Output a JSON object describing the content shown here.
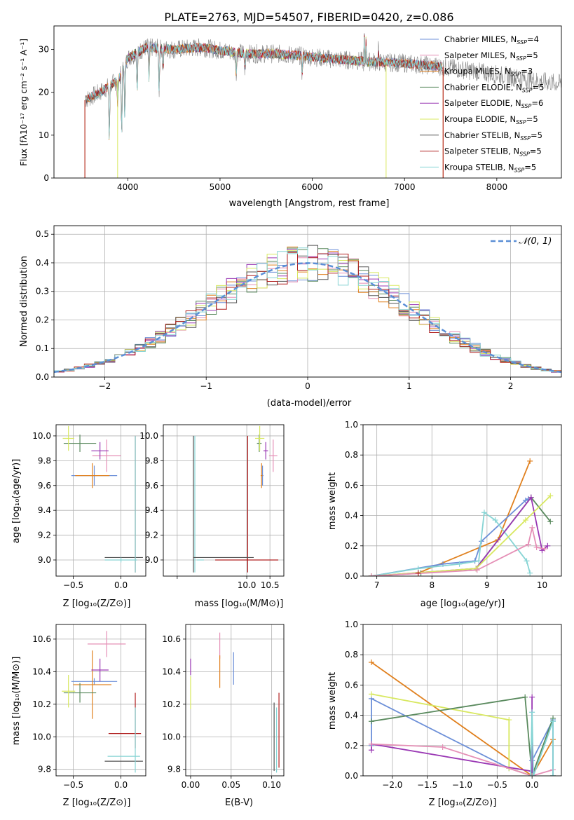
{
  "title": "PLATE=2763, MJD=54507, FIBERID=0420, z=0.086",
  "colors": {
    "c1": "#6c8fd8",
    "c2": "#e58fb6",
    "c3": "#e0801e",
    "c4": "#5a8a5e",
    "c5": "#9a38b4",
    "c6": "#d8e860",
    "c7": "#555555",
    "c8": "#b02020",
    "c9": "#86d4d4",
    "data": "#888888",
    "gauss": "#5b8fd6",
    "grid": "#b0b0b0"
  },
  "chart_data": [
    {
      "id": "spectrum",
      "type": "line",
      "xlabel": "wavelength [Angstrom, rest frame]",
      "ylabel": "Flux [fλ10⁻¹⁷ erg cm⁻² s⁻¹ A⁻¹]",
      "xlim": [
        3200,
        8700
      ],
      "ylim": [
        0,
        35.5
      ],
      "xticks": [
        4000,
        5000,
        6000,
        7000,
        8000
      ],
      "yticks": [
        0,
        10,
        20,
        30
      ],
      "legend": "top-right",
      "series": [
        {
          "name": "Chabrier MILES, N_SSP=4",
          "color": "c1"
        },
        {
          "name": "Salpeter MILES, N_SSP=5",
          "color": "c2"
        },
        {
          "name": "Kroupa MILES, N_SSP=3",
          "color": "c3"
        },
        {
          "name": "Chabrier ELODIE, N_SSP=5",
          "color": "c4"
        },
        {
          "name": "Salpeter ELODIE, N_SSP=6",
          "color": "c5"
        },
        {
          "name": "Kroupa ELODIE, N_SSP=5",
          "color": "c6"
        },
        {
          "name": "Chabrier STELIB, N_SSP=5",
          "color": "c7"
        },
        {
          "name": "Salpeter STELIB, N_SSP=5",
          "color": "c8"
        },
        {
          "name": "Kroupa STELIB, N_SSP=5",
          "color": "c9"
        }
      ],
      "continuum": [
        [
          3520,
          18
        ],
        [
          3700,
          20
        ],
        [
          3900,
          23
        ],
        [
          4000,
          28
        ],
        [
          4200,
          30.5
        ],
        [
          4500,
          30
        ],
        [
          4800,
          30.5
        ],
        [
          5000,
          29.8
        ],
        [
          5300,
          29
        ],
        [
          5600,
          29
        ],
        [
          5900,
          28.5
        ],
        [
          6200,
          27.8
        ],
        [
          6600,
          27.2
        ],
        [
          7000,
          26.8
        ],
        [
          7400,
          26
        ],
        [
          7800,
          24.8
        ],
        [
          8200,
          23.5
        ],
        [
          8500,
          22.5
        ],
        [
          8700,
          22
        ]
      ],
      "absorptions": [
        [
          3800,
          13
        ],
        [
          3890,
          6
        ],
        [
          3934,
          15
        ],
        [
          3968,
          13
        ],
        [
          4102,
          9
        ],
        [
          4230,
          7
        ],
        [
          4340,
          10
        ],
        [
          4383,
          5
        ],
        [
          5175,
          6
        ],
        [
          5270,
          4
        ],
        [
          5890,
          4
        ],
        [
          6563,
          3
        ]
      ],
      "emissions": [
        [
          6563,
          9
        ],
        [
          6583,
          5
        ],
        [
          6717,
          3
        ]
      ],
      "drops": [
        {
          "name": "Kroupa MILES",
          "color": "c3",
          "x": [
            3535,
            7418
          ]
        },
        {
          "name": "Kroupa ELODIE",
          "color": "c6",
          "x": [
            3890,
            6800
          ]
        },
        {
          "name": "Salpeter STELIB",
          "color": "c8",
          "x": [
            3535,
            7418
          ]
        }
      ],
      "model_ranges": [
        [
          3540,
          7410
        ],
        [
          3540,
          7410
        ],
        [
          3540,
          7410
        ],
        [
          3900,
          6790
        ],
        [
          3900,
          6790
        ],
        [
          3900,
          6790
        ],
        [
          3540,
          7410
        ],
        [
          3540,
          7410
        ],
        [
          3540,
          7410
        ]
      ]
    },
    {
      "id": "residuals",
      "type": "histogram",
      "xlabel": "(data-model)/error",
      "ylabel": "Normed distribution",
      "xlim": [
        -2.5,
        2.5
      ],
      "ylim": [
        0,
        0.53
      ],
      "xticks": [
        -2,
        -1,
        0,
        1,
        2
      ],
      "yticks": [
        0.0,
        0.1,
        0.2,
        0.3,
        0.4,
        0.5
      ],
      "legend_label": "𝒩(0, 1)",
      "legend": "top-right",
      "bin_width": 0.1
    },
    {
      "id": "age-vs-Z",
      "type": "scatter",
      "xlabel": "Z [log₁₀(Z/Z⊙)]",
      "ylabel": "age  [log₁₀(age/yr)]",
      "xlim": [
        -0.68,
        0.26
      ],
      "ylim": [
        8.87,
        10.09
      ],
      "xticks": [
        -0.5,
        0.0
      ],
      "yticks": [
        9.0,
        9.2,
        9.4,
        9.6,
        9.8,
        10.0
      ],
      "points": [
        {
          "color": "c1",
          "x": -0.28,
          "xe": 0.24,
          "y": 9.68,
          "ye": 0.08
        },
        {
          "color": "c2",
          "x": -0.15,
          "xe": 0.15,
          "y": 9.84,
          "ye": 0.13
        },
        {
          "color": "c3",
          "x": -0.3,
          "xe": 0.18,
          "y": 9.68,
          "ye": 0.1
        },
        {
          "color": "c4",
          "x": -0.43,
          "xe": 0.17,
          "y": 9.94,
          "ye": 0.07
        },
        {
          "color": "c5",
          "x": -0.22,
          "xe": 0.09,
          "y": 9.88,
          "ye": 0.07
        },
        {
          "color": "c6",
          "x": -0.55,
          "xe": 0.06,
          "y": 9.98,
          "ye": 0.1
        },
        {
          "color": "c7",
          "x": 0.03,
          "xe": 0.2,
          "y": 9.02,
          "ye": 0.0
        },
        {
          "color": "c8",
          "x": 0.15,
          "xe": 0.0,
          "y": 9.45,
          "ye": 0.55
        },
        {
          "color": "c9",
          "x": 0.0,
          "xe": 0.17,
          "y": 9.0,
          "ye": 0.02
        },
        {
          "color": "c9",
          "x": 0.15,
          "xe": 0.0,
          "y": 9.45,
          "ye": 0.55
        }
      ]
    },
    {
      "id": "age-vs-mass",
      "type": "scatter",
      "xlabel": "mass [log₁₀(M/M⊙)]",
      "ylabel": "",
      "xlim": [
        8.2,
        10.8
      ],
      "ylim": [
        8.87,
        10.09
      ],
      "xticks": [
        8.5,
        10.0,
        10.5
      ],
      "yticks": [
        9.0,
        9.2,
        9.4,
        9.6,
        9.8,
        10.0
      ],
      "xticklabels": [
        "",
        "10.0",
        "10.5"
      ],
      "points": [
        {
          "color": "c1",
          "x": 10.34,
          "xe": 0.02,
          "y": 9.68,
          "ye": 0.08
        },
        {
          "color": "c2",
          "x": 10.57,
          "xe": 0.09,
          "y": 9.84,
          "ye": 0.13
        },
        {
          "color": "c3",
          "x": 10.32,
          "xe": 0.02,
          "y": 9.68,
          "ye": 0.1
        },
        {
          "color": "c4",
          "x": 10.27,
          "xe": 0.05,
          "y": 9.94,
          "ye": 0.07
        },
        {
          "color": "c5",
          "x": 10.41,
          "xe": 0.05,
          "y": 9.88,
          "ye": 0.07
        },
        {
          "color": "c6",
          "x": 10.28,
          "xe": 0.1,
          "y": 9.98,
          "ye": 0.1
        },
        {
          "color": "c7",
          "x": 8.85,
          "xe": 0.0,
          "y": 9.45,
          "ye": 0.55
        },
        {
          "color": "c8",
          "x": 10.02,
          "xe": 0.0,
          "y": 9.45,
          "ye": 0.55
        },
        {
          "color": "c9",
          "x": 8.88,
          "xe": 0.0,
          "y": 9.45,
          "ye": 0.55
        },
        {
          "color": "c7",
          "x": 9.5,
          "xe": 0.65,
          "y": 9.02,
          "ye": 0.0
        },
        {
          "color": "c8",
          "x": 10.0,
          "xe": 0.68,
          "y": 9.0,
          "ye": 0.0
        },
        {
          "color": "c9",
          "x": 9.0,
          "xe": 0.0,
          "y": 9.0,
          "ye": 0.0
        }
      ]
    },
    {
      "id": "weight-vs-age",
      "type": "line",
      "xlabel": "age  [log₁₀(age/yr)]",
      "ylabel": "mass weight",
      "xlim": [
        6.75,
        10.35
      ],
      "ylim": [
        0,
        1.0
      ],
      "xticks": [
        7,
        8,
        9,
        10
      ],
      "yticks": [
        0.0,
        0.2,
        0.4,
        0.6,
        0.8,
        1.0
      ],
      "series": [
        {
          "color": "c3",
          "x": [
            6.9,
            7.75,
            9.2,
            9.78
          ],
          "y": [
            0.0,
            0.02,
            0.24,
            0.76
          ]
        },
        {
          "color": "c1",
          "x": [
            6.9,
            8.2,
            8.78,
            8.9,
            9.7,
            9.75
          ],
          "y": [
            0.0,
            0.08,
            0.1,
            0.23,
            0.5,
            0.51
          ]
        },
        {
          "color": "c9",
          "x": [
            6.9,
            7.75,
            8.5,
            8.85,
            8.95,
            9.15,
            9.72,
            9.78
          ],
          "y": [
            0.0,
            0.05,
            0.08,
            0.1,
            0.42,
            0.37,
            0.1,
            0.02
          ]
        },
        {
          "color": "c4",
          "x": [
            6.9,
            7.8,
            8.8,
            9.8,
            10.15
          ],
          "y": [
            0.0,
            0.02,
            0.05,
            0.52,
            0.36
          ]
        },
        {
          "color": "c5",
          "x": [
            6.9,
            8.8,
            9.8,
            10.0,
            10.1
          ],
          "y": [
            0.0,
            0.05,
            0.52,
            0.17,
            0.2
          ]
        },
        {
          "color": "c6",
          "x": [
            6.9,
            8.8,
            9.7,
            10.15
          ],
          "y": [
            0.0,
            0.05,
            0.37,
            0.53
          ]
        },
        {
          "color": "c2",
          "x": [
            6.9,
            8.82,
            9.75,
            9.82,
            9.9,
            10.05
          ],
          "y": [
            0.0,
            0.04,
            0.21,
            0.32,
            0.19,
            0.18
          ]
        },
        {
          "color": "c8",
          "x": [
            7.75
          ],
          "y": [
            0.02
          ]
        }
      ]
    },
    {
      "id": "mass-vs-Z",
      "type": "scatter",
      "xlabel": "Z [log₁₀(Z/Z⊙)]",
      "ylabel": "mass [log₁₀(M/M⊙)]",
      "xlim": [
        -0.68,
        0.26
      ],
      "ylim": [
        9.76,
        10.69
      ],
      "xticks": [
        -0.5,
        0.0
      ],
      "yticks": [
        9.8,
        10.0,
        10.2,
        10.4,
        10.6
      ],
      "points": [
        {
          "color": "c1",
          "x": -0.28,
          "xe": 0.24,
          "y": 10.34,
          "ye": 0.02
        },
        {
          "color": "c2",
          "x": -0.15,
          "xe": 0.2,
          "y": 10.57,
          "ye": 0.08
        },
        {
          "color": "c3",
          "x": -0.3,
          "xe": 0.2,
          "y": 10.32,
          "ye": 0.21
        },
        {
          "color": "c4",
          "x": -0.43,
          "xe": 0.17,
          "y": 10.27,
          "ye": 0.06
        },
        {
          "color": "c5",
          "x": -0.22,
          "xe": 0.09,
          "y": 10.41,
          "ye": 0.07
        },
        {
          "color": "c6",
          "x": -0.55,
          "xe": 0.07,
          "y": 10.28,
          "ye": 0.1
        },
        {
          "color": "c7",
          "x": 0.03,
          "xe": 0.2,
          "y": 9.85,
          "ye": 0.0
        },
        {
          "color": "c8",
          "x": 0.04,
          "xe": 0.17,
          "y": 10.02,
          "ye": 0.0
        },
        {
          "color": "c8",
          "x": 0.15,
          "xe": 0.0,
          "y": 10.1,
          "ye": 0.17
        },
        {
          "color": "c9",
          "x": 0.03,
          "xe": 0.17,
          "y": 9.88,
          "ye": 0.0
        },
        {
          "color": "c9",
          "x": 0.15,
          "xe": 0.0,
          "y": 9.98,
          "ye": 0.2
        }
      ]
    },
    {
      "id": "mass-vs-EBV",
      "type": "scatter",
      "xlabel": "E(B-V)",
      "ylabel": "",
      "xlim": [
        -0.006,
        0.115
      ],
      "ylim": [
        9.76,
        10.69
      ],
      "xticks": [
        0.0,
        0.05,
        0.1
      ],
      "yticks": [
        9.8,
        10.0,
        10.2,
        10.4,
        10.6
      ],
      "points": [
        {
          "color": "c1",
          "x": 0.053,
          "y": 10.42,
          "ye": 0.1
        },
        {
          "color": "c2",
          "x": 0.036,
          "y": 10.56,
          "ye": 0.08
        },
        {
          "color": "c3",
          "x": 0.036,
          "y": 10.4,
          "ye": 0.1
        },
        {
          "color": "c5",
          "x": 0.0,
          "y": 10.43,
          "ye": 0.05
        },
        {
          "color": "c6",
          "x": 0.0,
          "y": 10.27,
          "ye": 0.1
        },
        {
          "color": "c7",
          "x": 0.103,
          "y": 10.0,
          "ye": 0.21
        },
        {
          "color": "c8",
          "x": 0.109,
          "y": 10.04,
          "ye": 0.23
        },
        {
          "color": "c9",
          "x": 0.106,
          "y": 9.98,
          "ye": 0.2
        }
      ]
    },
    {
      "id": "weight-vs-Z",
      "type": "line",
      "xlabel": "Z [log₁₀(Z/Z⊙)]",
      "ylabel": "mass weight",
      "xlim": [
        -2.42,
        0.42
      ],
      "ylim": [
        0,
        1.0
      ],
      "xticks": [
        -2.0,
        -1.5,
        -1.0,
        -0.5,
        0.0
      ],
      "yticks": [
        0.0,
        0.2,
        0.4,
        0.6,
        0.8,
        1.0
      ],
      "series": [
        {
          "color": "c3",
          "x": [
            -2.3,
            0.0,
            0.3,
            0.3
          ],
          "y": [
            0.75,
            0.0,
            0.24,
            0.0
          ]
        },
        {
          "color": "c1",
          "x": [
            -2.3,
            -2.3,
            -0.33,
            0.0,
            0.0,
            0.3,
            0.3
          ],
          "y": [
            0.2,
            0.51,
            0.05,
            0.0,
            0.1,
            0.37,
            0.0
          ]
        },
        {
          "color": "c6",
          "x": [
            -2.3,
            -0.33,
            -0.33,
            0.0
          ],
          "y": [
            0.54,
            0.37,
            0.05,
            0.0
          ]
        },
        {
          "color": "c4",
          "x": [
            -2.3,
            -0.1,
            0.0,
            0.3
          ],
          "y": [
            0.36,
            0.52,
            0.0,
            0.38
          ]
        },
        {
          "color": "c5",
          "x": [
            -2.3,
            -2.3,
            0.0,
            0.0
          ],
          "y": [
            0.17,
            0.21,
            0.03,
            0.52
          ]
        },
        {
          "color": "c2",
          "x": [
            -2.3,
            -1.28,
            0.0,
            0.3
          ],
          "y": [
            0.21,
            0.19,
            0.0,
            0.04
          ]
        },
        {
          "color": "c9",
          "x": [
            -0.02,
            0.0,
            0.02,
            0.3,
            0.3
          ],
          "y": [
            0.0,
            0.42,
            0.0,
            0.36,
            0.0
          ]
        }
      ]
    }
  ]
}
